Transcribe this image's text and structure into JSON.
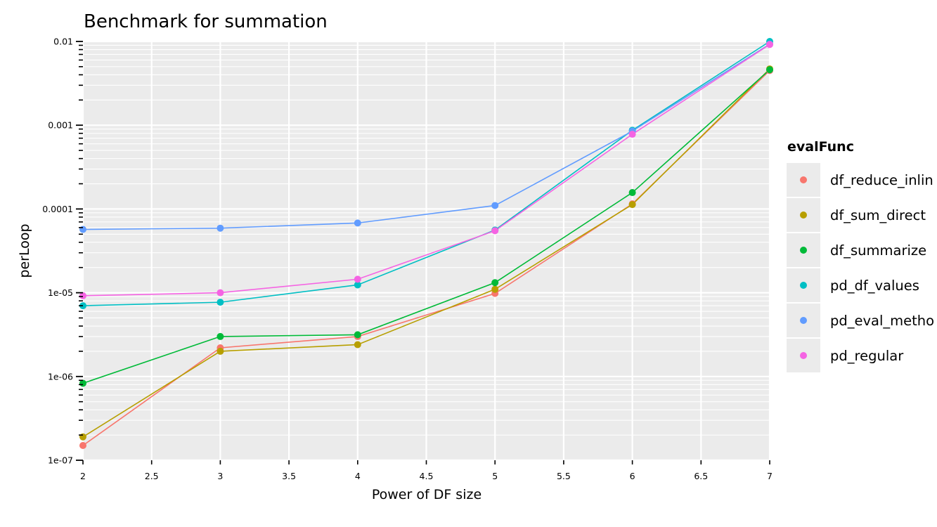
{
  "chart_data": {
    "type": "line",
    "title": "Benchmark for summation",
    "xlabel": "Power of DF size",
    "ylabel": "perLoop",
    "y_scale": "log10",
    "xlim": [
      2,
      7
    ],
    "ylim": [
      1e-07,
      0.01
    ],
    "grid": true,
    "x_ticks": [
      2,
      2.5,
      3,
      3.5,
      4,
      4.5,
      5,
      5.5,
      6,
      6.5,
      7
    ],
    "x_tick_labels": [
      "2",
      "2.5",
      "3",
      "3.5",
      "4",
      "4.5",
      "5",
      "5.5",
      "6",
      "6.5",
      "7"
    ],
    "y_ticks": [
      1e-07,
      1e-06,
      1e-05,
      0.0001,
      0.001,
      0.01
    ],
    "y_tick_labels": [
      "1e-07",
      "1e-06",
      "1e-05",
      "0.0001",
      "0.001",
      "0.01"
    ],
    "legend_title": "evalFunc",
    "legend_position": "right",
    "x": [
      2,
      3,
      4,
      5,
      6,
      7
    ],
    "series": [
      {
        "name": "df_reduce_inlin",
        "color": "#F8766D",
        "values": [
          1.5e-07,
          2.2e-06,
          3e-06,
          9.8e-06,
          0.000115,
          0.0045
        ]
      },
      {
        "name": "df_sum_direct",
        "color": "#B79F00",
        "values": [
          1.9e-07,
          2e-06,
          2.4e-06,
          1.1e-05,
          0.000113,
          0.0047
        ]
      },
      {
        "name": "df_summarize",
        "color": "#00BA38",
        "values": [
          8.3e-07,
          3e-06,
          3.15e-06,
          1.32e-05,
          0.000157,
          0.0046
        ]
      },
      {
        "name": "pd_df_values",
        "color": "#00BFC4",
        "values": [
          7e-06,
          7.7e-06,
          1.24e-05,
          5.6e-05,
          0.00087,
          0.01
        ]
      },
      {
        "name": "pd_eval_metho",
        "color": "#619CFF",
        "values": [
          5.7e-05,
          5.9e-05,
          6.8e-05,
          0.00011,
          0.00085,
          0.0093
        ]
      },
      {
        "name": "pd_regular",
        "color": "#F564E3",
        "values": [
          9.2e-06,
          1e-05,
          1.45e-05,
          5.5e-05,
          0.00078,
          0.0092
        ]
      }
    ]
  }
}
